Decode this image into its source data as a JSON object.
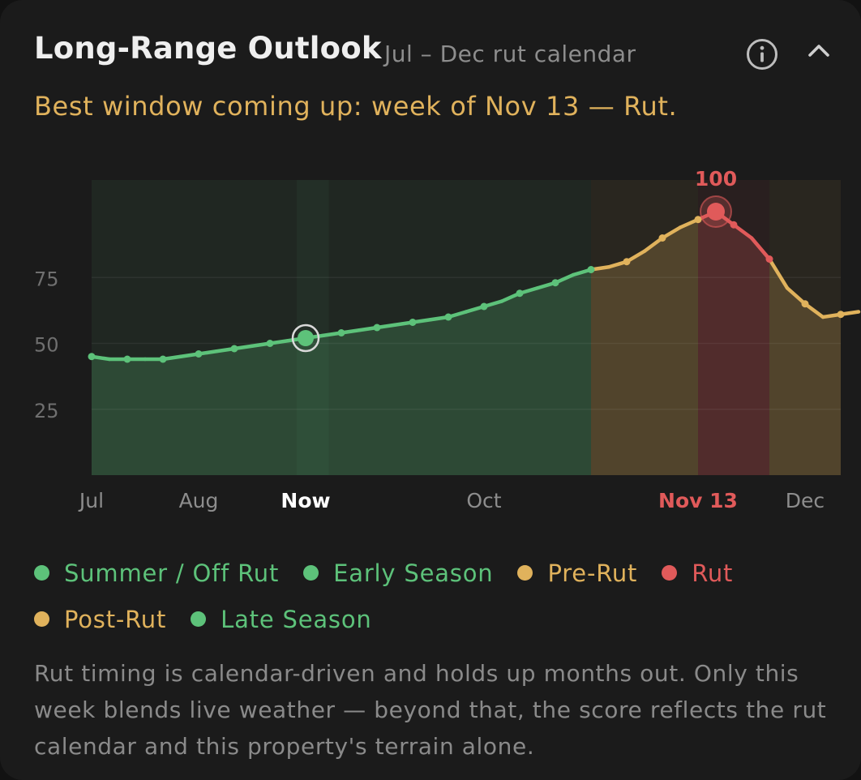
{
  "header": {
    "title": "Long-Range Outlook",
    "subtitle": "Jul – Dec rut calendar",
    "headline": "Best window coming up: week of Nov 13 — Rut."
  },
  "icons": {
    "info": "info-circle-icon",
    "collapse": "chevron-up-icon"
  },
  "colors": {
    "green": "#5dc27a",
    "gold": "#e0b25c",
    "red": "#e05a5a",
    "background": "#1b1b1b"
  },
  "legend": {
    "rows": [
      [
        {
          "label": "Summer / Off Rut",
          "color": "#5dc27a"
        },
        {
          "label": "Early Season",
          "color": "#5dc27a"
        },
        {
          "label": "Pre-Rut",
          "color": "#e0b25c"
        },
        {
          "label": "Rut",
          "color": "#e05a5a"
        }
      ],
      [
        {
          "label": "Post-Rut",
          "color": "#e0b25c"
        },
        {
          "label": "Late Season",
          "color": "#5dc27a"
        }
      ]
    ]
  },
  "footnote": "Rut timing is calendar-driven and holds up months out. Only this week blends live weather — beyond that, the score reflects the rut calendar and this property's terrain alone.",
  "chart_data": {
    "type": "line",
    "title": "",
    "xlabel": "",
    "ylabel": "",
    "ylim": [
      0,
      112
    ],
    "yticks": [
      25,
      50,
      75
    ],
    "grid": true,
    "x_ticks": [
      {
        "label": "Jul",
        "week": 0
      },
      {
        "label": "Aug",
        "week": 3
      },
      {
        "label": "Now",
        "week": 6,
        "emphasis": "now"
      },
      {
        "label": "Oct",
        "week": 11
      },
      {
        "label": "Nov 13",
        "week": 17,
        "emphasis": "peak"
      },
      {
        "label": "Dec",
        "week": 20
      }
    ],
    "x_range": [
      0,
      21
    ],
    "values": [
      45,
      44,
      44,
      44,
      44,
      45,
      46,
      47,
      48,
      49,
      50,
      51,
      52,
      53,
      54,
      55,
      56,
      57,
      58,
      59,
      60,
      62,
      64,
      66,
      69,
      71,
      73,
      76,
      78,
      79,
      81,
      85,
      90,
      94,
      97,
      100,
      95,
      90,
      82,
      71,
      65,
      60,
      61,
      62
    ],
    "x_step": 0.5,
    "now_index": 12,
    "peak_index": 35,
    "peak_label": "100",
    "phases": [
      {
        "name": "Early Season",
        "start": 0,
        "end": 14,
        "color": "#5dc27a"
      },
      {
        "name": "Pre-Rut",
        "start": 14,
        "end": 17,
        "color": "#e0b25c"
      },
      {
        "name": "Rut",
        "start": 17,
        "end": 19,
        "color": "#e05a5a"
      },
      {
        "name": "Post-Rut",
        "start": 19,
        "end": 21,
        "color": "#e0b25c"
      }
    ],
    "highlight_week": {
      "start": 5.75,
      "end": 6.65
    }
  }
}
